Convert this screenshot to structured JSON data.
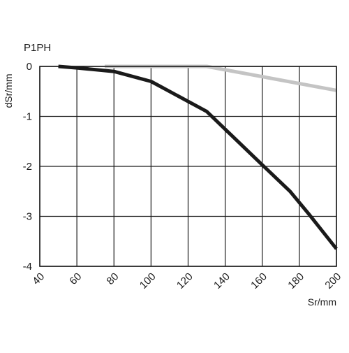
{
  "chart_data": {
    "type": "line",
    "title": "P1PH",
    "xlabel": "Sr/mm",
    "ylabel": "dSr/mm",
    "xlim": [
      40,
      200
    ],
    "ylim": [
      -4,
      0
    ],
    "x_ticks": [
      40,
      60,
      80,
      100,
      120,
      140,
      160,
      180,
      200
    ],
    "y_ticks": [
      0,
      -1,
      -2,
      -3,
      -4
    ],
    "x_tick_labels": [
      "40",
      "60",
      "80",
      "100",
      "120",
      "140",
      "160",
      "180",
      "200"
    ],
    "y_tick_labels": [
      "0",
      "-1",
      "-2",
      "-3",
      "-4"
    ],
    "grid": true,
    "series": [
      {
        "color": "#c4c4c4",
        "x": [
          75,
          130,
          200
        ],
        "y": [
          0,
          0,
          -0.48
        ]
      },
      {
        "color": "#1a1a1a",
        "x": [
          50,
          60,
          80,
          100,
          130,
          160,
          175,
          185,
          200
        ],
        "y": [
          0,
          -0.03,
          -0.1,
          -0.3,
          -0.9,
          -1.97,
          -2.5,
          -2.95,
          -3.65
        ]
      }
    ]
  }
}
